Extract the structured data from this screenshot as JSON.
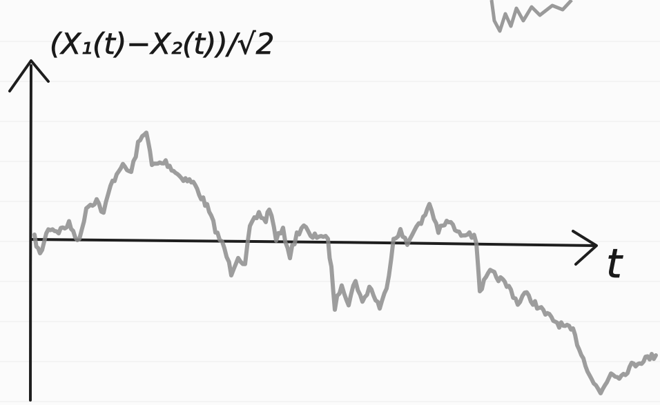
{
  "axes": {
    "y_label": "(X₁(t)−X₂(t))/√2",
    "x_label": "t"
  }
}
